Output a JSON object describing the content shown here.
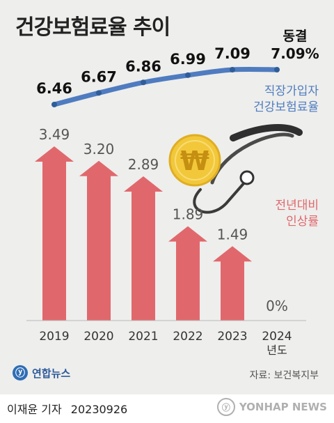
{
  "title": "건강보험료율 추이",
  "rate_legend": [
    "직장가입자",
    "건강보험료율"
  ],
  "change_legend": [
    "전년대비",
    "인상률"
  ],
  "freeze_label": "동결",
  "source": "자료: 보건복지부",
  "logo": {
    "mark": "ⓨ",
    "text": "연합뉴스"
  },
  "byline": {
    "author": "이재윤 기자",
    "date": "20230926"
  },
  "watermark": {
    "mark": "ⓨ",
    "text": "YONHAP NEWS"
  },
  "illustration": {
    "coin_symbol": "₩",
    "coin_icon": "won-coin-icon",
    "stethoscope_icon": "stethoscope-icon"
  },
  "colors": {
    "rate_line": "#4f7cc0",
    "bar": "#e0686d",
    "background": "#eeeeec",
    "coin": "#f2c83a"
  },
  "chart_data": [
    {
      "type": "line",
      "series_label": "직장가입자 건강보험료율",
      "x": [
        "2019",
        "2020",
        "2021",
        "2022",
        "2023",
        "2024"
      ],
      "values": [
        6.46,
        6.67,
        6.86,
        6.99,
        7.09,
        7.09
      ],
      "labels": [
        "6.46",
        "6.67",
        "6.86",
        "6.99",
        "7.09",
        "7.09%"
      ],
      "grid": false
    },
    {
      "type": "bar",
      "series_label": "전년대비 인상률",
      "categories": [
        "2019",
        "2020",
        "2021",
        "2022",
        "2023",
        "2024"
      ],
      "values": [
        3.49,
        3.2,
        2.89,
        1.89,
        1.49,
        0
      ],
      "labels": [
        "3.49",
        "3.20",
        "2.89",
        "1.89",
        "1.49",
        "0%"
      ],
      "xlabel_last_suffix": "년도",
      "ylim": [
        0,
        3.49
      ],
      "grid": false
    }
  ]
}
